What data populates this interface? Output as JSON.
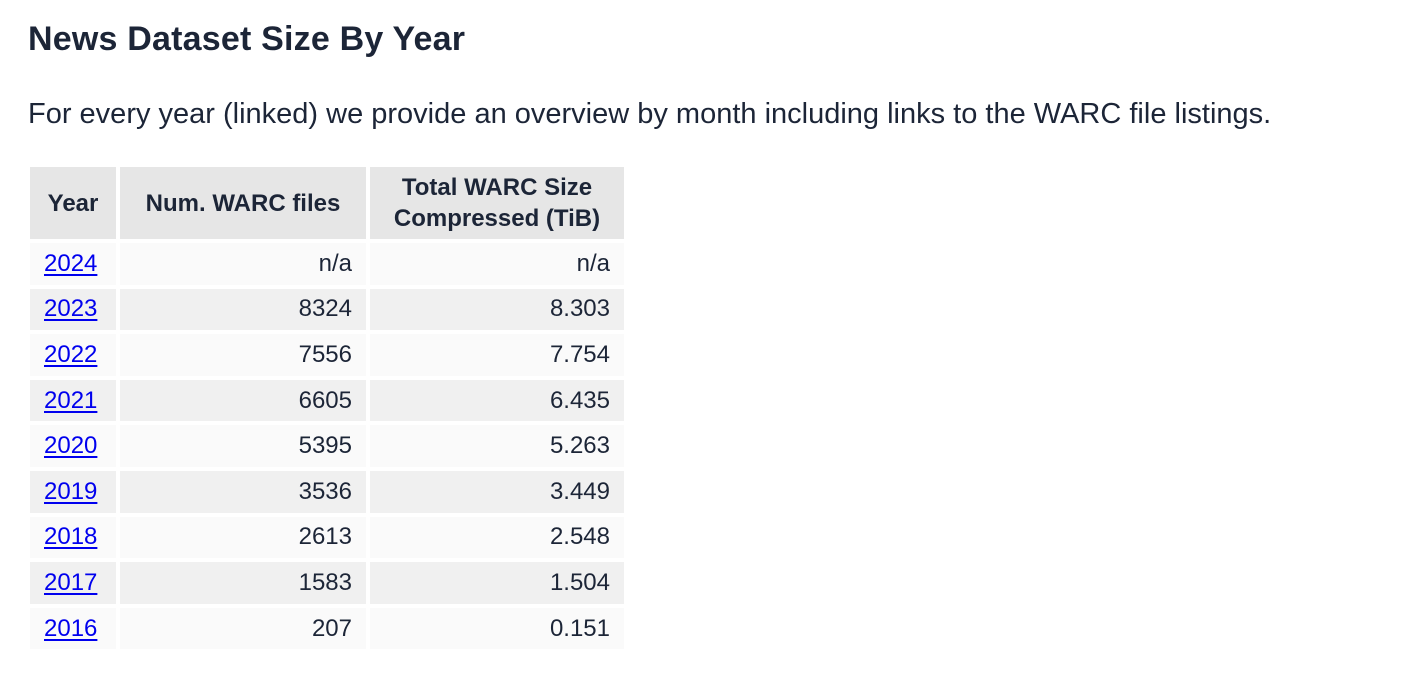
{
  "page": {
    "title": "News Dataset Size By Year",
    "intro": "For every year (linked) we provide an overview by month including links to the WARC file listings."
  },
  "table": {
    "headers": {
      "year": "Year",
      "files": "Num. WARC files",
      "size_line1": "Total WARC Size",
      "size_line2": "Compressed (TiB)"
    },
    "rows": [
      {
        "year": "2024",
        "files": "n/a",
        "size": "n/a"
      },
      {
        "year": "2023",
        "files": "8324",
        "size": "8.303"
      },
      {
        "year": "2022",
        "files": "7556",
        "size": "7.754"
      },
      {
        "year": "2021",
        "files": "6605",
        "size": "6.435"
      },
      {
        "year": "2020",
        "files": "5395",
        "size": "5.263"
      },
      {
        "year": "2019",
        "files": "3536",
        "size": "3.449"
      },
      {
        "year": "2018",
        "files": "2613",
        "size": "2.548"
      },
      {
        "year": "2017",
        "files": "1583",
        "size": "1.504"
      },
      {
        "year": "2016",
        "files": "207",
        "size": "0.151"
      }
    ]
  },
  "colors": {
    "text": "#1c2537",
    "link": "#0000ee",
    "header_bg": "#e6e6e6",
    "row_odd_bg": "#fafafa",
    "row_even_bg": "#f0f0f0"
  }
}
